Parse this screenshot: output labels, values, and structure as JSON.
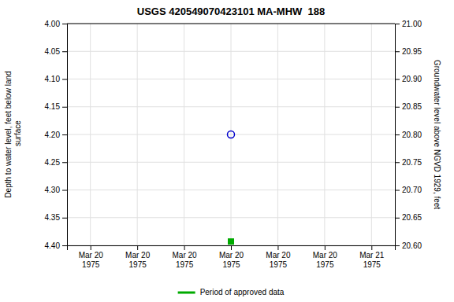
{
  "chart_data": {
    "type": "scatter",
    "title": "USGS 420549070423101 MA-MHW  188",
    "y_label": "Depth to water level, feet below land\n surface",
    "y2_label": "Groundwater level above NGVD 1929, feet",
    "categories": [
      "Mar 20\n1975",
      "Mar 20\n1975",
      "Mar 20\n1975",
      "Mar 20\n1975",
      "Mar 20\n1975",
      "Mar 20\n1975",
      "Mar 21\n1975"
    ],
    "series": [
      {
        "color": "#0000cc",
        "marker": "circle",
        "values": [
          null,
          null,
          null,
          4.2,
          null,
          null,
          null
        ]
      },
      {
        "name": "Period of approved data",
        "color": "#00aa00",
        "marker": "square",
        "values": [
          null,
          null,
          null,
          4.393,
          null,
          null,
          null
        ]
      }
    ],
    "ylim": [
      4.4,
      4.0
    ],
    "yticks": [
      {
        "value": 4.0,
        "label": "4.00"
      },
      {
        "value": 4.05,
        "label": "4.05"
      },
      {
        "value": 4.1,
        "label": "4.10"
      },
      {
        "value": 4.15,
        "label": "4.15"
      },
      {
        "value": 4.2,
        "label": "4.20"
      },
      {
        "value": 4.25,
        "label": "4.25"
      },
      {
        "value": 4.3,
        "label": "4.30"
      },
      {
        "value": 4.35,
        "label": "4.35"
      },
      {
        "value": 4.4,
        "label": "4.40"
      }
    ],
    "y2lim": [
      20.6,
      21.0
    ],
    "y2ticks": [
      {
        "value": 21.0,
        "label": "21.00"
      },
      {
        "value": 20.95,
        "label": "20.95"
      },
      {
        "value": 20.9,
        "label": "20.90"
      },
      {
        "value": 20.85,
        "label": "20.85"
      },
      {
        "value": 20.8,
        "label": "20.80"
      },
      {
        "value": 20.75,
        "label": "20.75"
      },
      {
        "value": 20.7,
        "label": "20.70"
      },
      {
        "value": 20.65,
        "label": "20.65"
      },
      {
        "value": 20.6,
        "label": "20.60"
      }
    ],
    "grid": true,
    "legend": "bottom"
  }
}
